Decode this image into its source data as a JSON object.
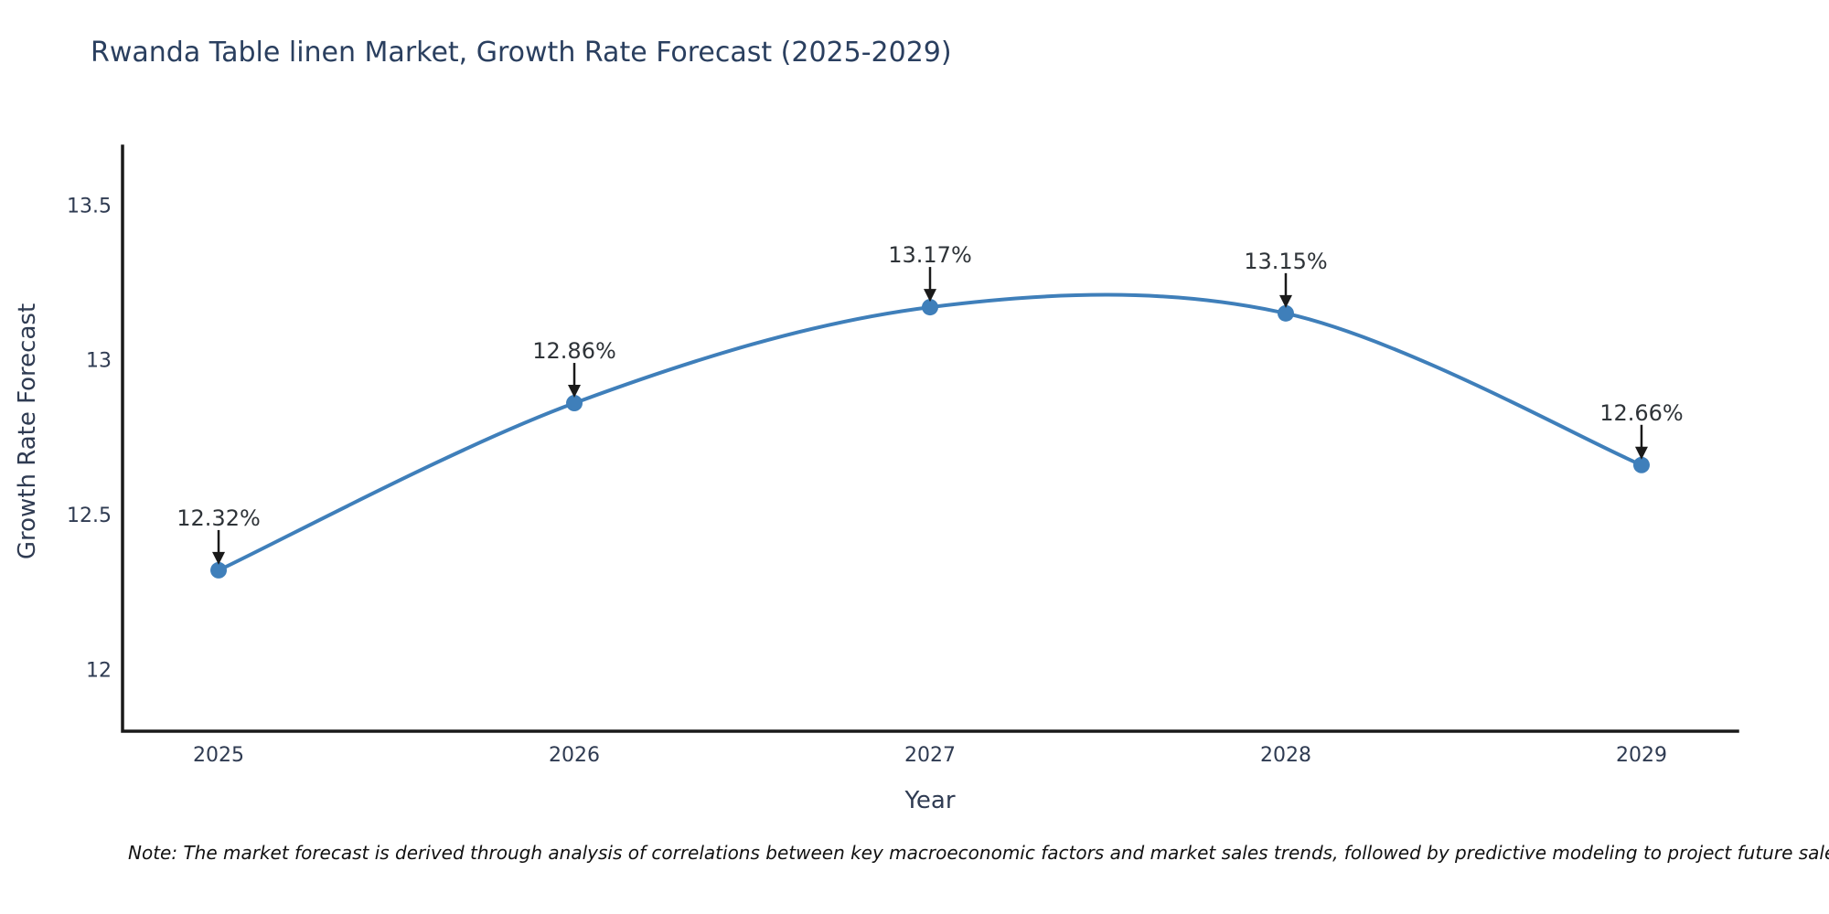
{
  "note": "Note: The market forecast is derived through analysis of correlations between key macroeconomic factors and market sales trends, followed by predictive modeling to project future sales",
  "chart_data": {
    "type": "line",
    "title": "Rwanda Table linen Market, Growth Rate Forecast (2025-2029)",
    "xlabel": "Year",
    "ylabel": "Growth Rate Forecast",
    "x": [
      2025,
      2026,
      2027,
      2028,
      2029
    ],
    "y": [
      12.32,
      12.86,
      13.17,
      13.15,
      12.66
    ],
    "point_labels": [
      "12.32%",
      "12.86%",
      "13.17%",
      "13.15%",
      "12.66%"
    ],
    "xticks": [
      "2025",
      "2026",
      "2027",
      "2028",
      "2029"
    ],
    "yticks": [
      12,
      12.5,
      13,
      13.5
    ],
    "ytick_labels": [
      "12",
      "12.5",
      "13",
      "13.5"
    ],
    "xlim": [
      2024.73,
      2029.27
    ],
    "ylim": [
      11.8,
      13.69
    ],
    "line_shape": "spline",
    "grid": false,
    "legend_visible": false,
    "colors": {
      "line": "#3f7fba",
      "marker": "#3f7fba",
      "axis": "#1a1a1a",
      "arrow": "#1a1a1a",
      "tick_text": "#2f3b52",
      "annotation_text": "#2e3338",
      "title_text": "#2a3f5f"
    }
  }
}
